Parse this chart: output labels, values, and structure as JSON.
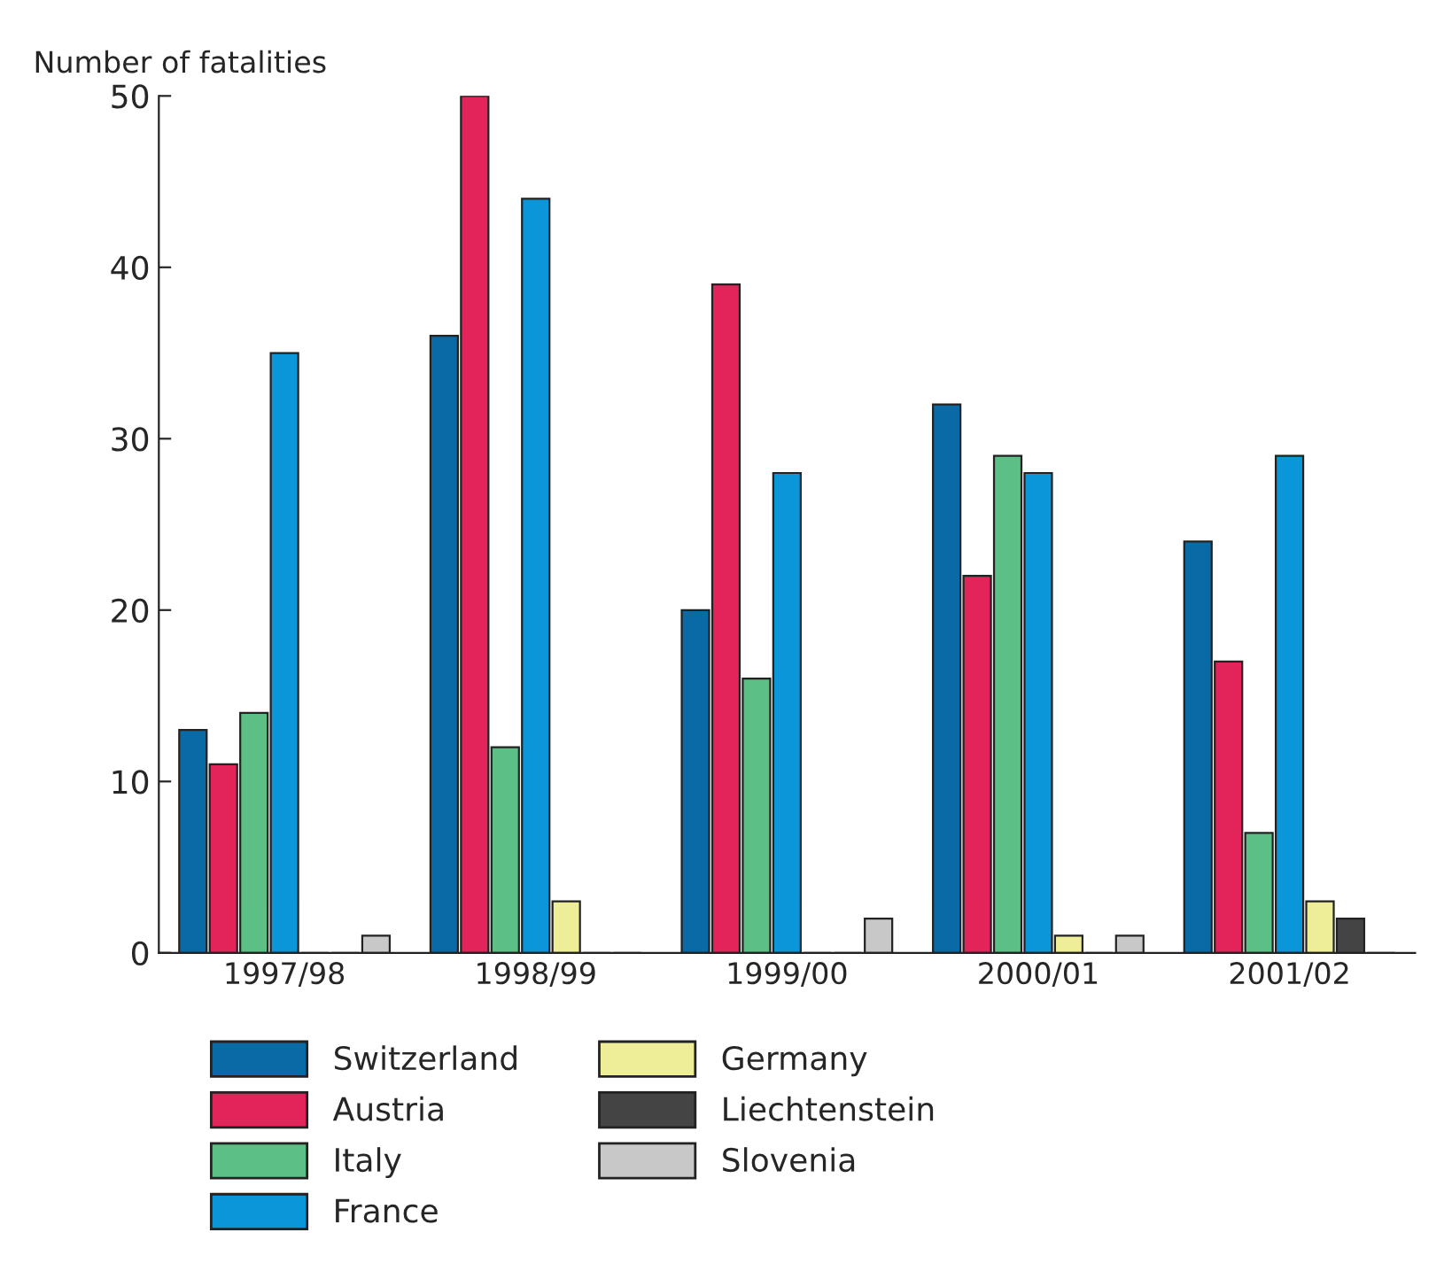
{
  "chart_data": {
    "type": "bar",
    "ylabel": "Number of fatalities",
    "categories": [
      "1997/98",
      "1998/99",
      "1999/00",
      "2000/01",
      "2001/02"
    ],
    "series": [
      {
        "name": "Switzerland",
        "color": "#0a6aa6",
        "values": [
          13,
          36,
          20,
          32,
          24
        ]
      },
      {
        "name": "Austria",
        "color": "#e3245a",
        "values": [
          11,
          50,
          39,
          22,
          17
        ]
      },
      {
        "name": "Italy",
        "color": "#5cbf86",
        "values": [
          14,
          12,
          16,
          29,
          7
        ]
      },
      {
        "name": "France",
        "color": "#0a96d8",
        "values": [
          35,
          44,
          28,
          28,
          29
        ]
      },
      {
        "name": "Germany",
        "color": "#eeee99",
        "values": [
          0,
          3,
          0,
          1,
          3
        ]
      },
      {
        "name": "Liechtenstein",
        "color": "#444444",
        "values": [
          0,
          0,
          0,
          0,
          2
        ]
      },
      {
        "name": "Slovenia",
        "color": "#c8c8c8",
        "values": [
          1,
          0,
          2,
          1,
          0
        ]
      }
    ],
    "ylim": [
      0,
      50
    ],
    "yticks": [
      0,
      10,
      20,
      30,
      40,
      50
    ],
    "grid": false,
    "legend": "bottom"
  }
}
